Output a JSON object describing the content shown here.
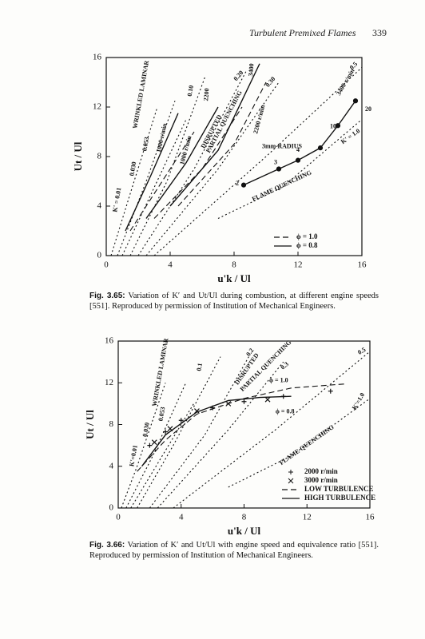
{
  "header": {
    "title": "Turbulent Premixed Flames",
    "page": "339"
  },
  "captions": [
    {
      "label": "Fig. 3.65:",
      "text": "Variation of K′ and Ut/Ul during combustion, at different engine speeds [551]. Reproduced by permission of Institution of Mechanical Engineers."
    },
    {
      "label": "Fig. 3.66:",
      "text": "Variation of K′ and Ut/Ul with engine speed and equivalence ratio [551]. Reproduced by permission of Institution of Mechanical Engineers."
    }
  ],
  "chart_data": [
    {
      "type": "line",
      "xlabel": "u'k / Ul",
      "ylabel": "Ut / Ul",
      "xlim": [
        0,
        16
      ],
      "ylim": [
        0,
        16
      ],
      "xticks": [
        0,
        4,
        8,
        12,
        16
      ],
      "yticks": [
        0,
        4,
        8,
        12,
        16
      ],
      "legend": "lower right",
      "series": [
        {
          "style": "dotted",
          "x": [
            0.3,
            1.5,
            3.2
          ],
          "values": [
            0,
            5,
            12
          ]
        },
        {
          "style": "dotted",
          "x": [
            0.7,
            2.5,
            4.3
          ],
          "values": [
            0,
            6,
            12.5
          ]
        },
        {
          "style": "dotted",
          "x": [
            1,
            3,
            5
          ],
          "values": [
            0,
            5.5,
            11
          ]
        },
        {
          "style": "dotted",
          "x": [
            1.5,
            3.8,
            6.2
          ],
          "values": [
            0,
            6,
            14.5
          ]
        },
        {
          "style": "dotted",
          "x": [
            2,
            5.5,
            8.8
          ],
          "values": [
            0,
            7,
            15
          ]
        },
        {
          "style": "dotted",
          "x": [
            2.5,
            7,
            10.8
          ],
          "values": [
            0,
            7,
            14
          ]
        },
        {
          "style": "dotted",
          "x": [
            3,
            10,
            16
          ],
          "values": [
            0,
            8,
            15.2
          ]
        },
        {
          "style": "dotted",
          "x": [
            7,
            11,
            16
          ],
          "values": [
            3,
            5.5,
            11
          ]
        },
        {
          "name": "ϕ = 1.0",
          "style": "dashed",
          "x": [
            1.5,
            3.5,
            5.5
          ],
          "values": [
            2,
            6,
            10
          ]
        },
        {
          "name": "ϕ = 0.8",
          "style": "solid",
          "x": [
            1.2,
            2.8,
            4.5
          ],
          "values": [
            2,
            6.5,
            11.5
          ]
        },
        {
          "style": "solid",
          "x": [
            2.5,
            5,
            7
          ],
          "values": [
            3,
            7.5,
            12
          ]
        },
        {
          "style": "dashed",
          "x": [
            3,
            6,
            8.5
          ],
          "values": [
            3,
            7,
            12
          ]
        },
        {
          "style": "solid",
          "x": [
            4,
            7,
            9.6
          ],
          "values": [
            4,
            8.5,
            15.5
          ]
        },
        {
          "style": "dashed",
          "x": [
            4.5,
            8,
            10
          ],
          "values": [
            4,
            9,
            14
          ]
        },
        {
          "style": "solid",
          "marker": "dot",
          "x": [
            8.6,
            10.8,
            12,
            13.4,
            14.5,
            15.6
          ],
          "values": [
            5.7,
            7,
            7.7,
            8.7,
            10.5,
            12.5
          ]
        }
      ],
      "annotations": [
        {
          "text": "WRINKLED LAMINAR",
          "x": 2.2,
          "y": 13
        },
        {
          "text": "K' = 0.01",
          "x": 0.7,
          "y": 4.5
        },
        {
          "text": "0.030",
          "x": 1.7,
          "y": 7
        },
        {
          "text": "0.053",
          "x": 2.5,
          "y": 9
        },
        {
          "text": "1000 r/min",
          "x": 3.5,
          "y": 9.5
        },
        {
          "text": "0.10",
          "x": 5.3,
          "y": 13.3
        },
        {
          "text": "2200",
          "x": 6.3,
          "y": 13
        },
        {
          "text": "1000 r/min",
          "x": 5,
          "y": 8.5
        },
        {
          "text": "DISRUPTED",
          "x": 6.6,
          "y": 10
        },
        {
          "text": "PARTIAL QUENCHING",
          "x": 7.4,
          "y": 10.8
        },
        {
          "text": "0.20",
          "x": 8.3,
          "y": 14.5
        },
        {
          "text": "3400",
          "x": 9.1,
          "y": 15
        },
        {
          "text": "0.30",
          "x": 10.3,
          "y": 14
        },
        {
          "text": "2200 r/min",
          "x": 9.6,
          "y": 11
        },
        {
          "text": "0.5",
          "x": 15.5,
          "y": 15.3
        },
        {
          "text": "3400 r/min",
          "x": 15,
          "y": 14
        },
        {
          "text": "20",
          "x": 16.4,
          "y": 11.8
        },
        {
          "text": "10",
          "x": 14.2,
          "y": 10.4
        },
        {
          "text": "K' = 1.0",
          "x": 15.3,
          "y": 9.6
        },
        {
          "text": "3mm RADIUS",
          "x": 11,
          "y": 8.8
        },
        {
          "text": "4",
          "x": 12,
          "y": 8.5
        },
        {
          "text": "3",
          "x": 10.6,
          "y": 7.5
        },
        {
          "text": "2",
          "x": 8.2,
          "y": 5.8
        },
        {
          "text": "FLAME QUENCHING",
          "x": 11,
          "y": 5.6
        }
      ]
    },
    {
      "type": "line",
      "xlabel": "u'k / Ul",
      "ylabel": "Ut / Ul",
      "xlim": [
        0,
        16
      ],
      "ylim": [
        0,
        16
      ],
      "xticks": [
        0,
        4,
        8,
        12,
        16
      ],
      "yticks": [
        0,
        4,
        8,
        12,
        16
      ],
      "legend": "lower right",
      "series": [
        {
          "style": "dotted",
          "x": [
            0.2,
            1.2,
            3
          ],
          "values": [
            0,
            4,
            12
          ]
        },
        {
          "style": "dotted",
          "x": [
            0.5,
            2.2,
            4.3
          ],
          "values": [
            0,
            5,
            12
          ]
        },
        {
          "style": "dotted",
          "x": [
            0.8,
            2.8,
            4.8
          ],
          "values": [
            0,
            5,
            10
          ]
        },
        {
          "style": "dotted",
          "x": [
            1.2,
            3.5,
            6.5
          ],
          "values": [
            0,
            6,
            14.5
          ]
        },
        {
          "style": "dotted",
          "x": [
            2,
            5.5,
            8.3
          ],
          "values": [
            0,
            7,
            14.5
          ]
        },
        {
          "style": "dotted",
          "x": [
            2.5,
            7,
            10.5
          ],
          "values": [
            0,
            7.5,
            14
          ]
        },
        {
          "style": "dotted",
          "x": [
            3.5,
            10,
            16
          ],
          "values": [
            0,
            7.5,
            15
          ]
        },
        {
          "style": "dotted",
          "x": [
            7,
            11,
            16
          ],
          "values": [
            2,
            5,
            10.5
          ]
        },
        {
          "name": "2000 r/min",
          "style": "none",
          "marker": "+",
          "x": [
            2,
            3,
            4,
            6,
            8,
            10.5,
            13.5
          ],
          "values": [
            6,
            7.3,
            8.4,
            9.6,
            10.2,
            10.7,
            11.2
          ]
        },
        {
          "name": "3000 r/min",
          "style": "none",
          "marker": "x",
          "x": [
            2.3,
            3.3,
            5,
            7,
            9.5
          ],
          "values": [
            6.3,
            7.6,
            9.3,
            10,
            10.4
          ]
        },
        {
          "name": "LOW TURBULENCE",
          "style": "dashed",
          "x": [
            1.2,
            3,
            5,
            8,
            11,
            14.5
          ],
          "values": [
            3.5,
            6.5,
            9,
            10.5,
            11.5,
            11.9
          ]
        },
        {
          "name": "HIGH TURBULENCE",
          "style": "solid",
          "x": [
            1.5,
            3,
            5,
            7,
            9,
            11
          ],
          "values": [
            4,
            7,
            9.2,
            10.3,
            10.6,
            10.7
          ]
        }
      ],
      "annotations": [
        {
          "text": "WRINKLED LAMINAR",
          "x": 2.7,
          "y": 13
        },
        {
          "text": "K'=0.01",
          "x": 1,
          "y": 5
        },
        {
          "text": "0.030",
          "x": 1.8,
          "y": 7.5
        },
        {
          "text": "0.053",
          "x": 2.8,
          "y": 9
        },
        {
          "text": "0.1",
          "x": 5.2,
          "y": 13.5
        },
        {
          "text": "0.2",
          "x": 8.4,
          "y": 14.9
        },
        {
          "text": "DISRUPTED",
          "x": 8.2,
          "y": 13.3
        },
        {
          "text": "PARTIAL QUENCHING",
          "x": 9.4,
          "y": 13.6
        },
        {
          "text": "0.3",
          "x": 10.6,
          "y": 13.6
        },
        {
          "text": "0.5",
          "x": 15.5,
          "y": 15
        },
        {
          "text": "K'=1.0",
          "x": 15.3,
          "y": 10.2
        },
        {
          "text": "ϕ = 1.0",
          "x": 10.2,
          "y": 12.2
        },
        {
          "text": "ϕ = 0.8",
          "x": 10.6,
          "y": 9.2
        },
        {
          "text": "FLAME QUENCHING",
          "x": 12,
          "y": 6
        }
      ]
    }
  ]
}
